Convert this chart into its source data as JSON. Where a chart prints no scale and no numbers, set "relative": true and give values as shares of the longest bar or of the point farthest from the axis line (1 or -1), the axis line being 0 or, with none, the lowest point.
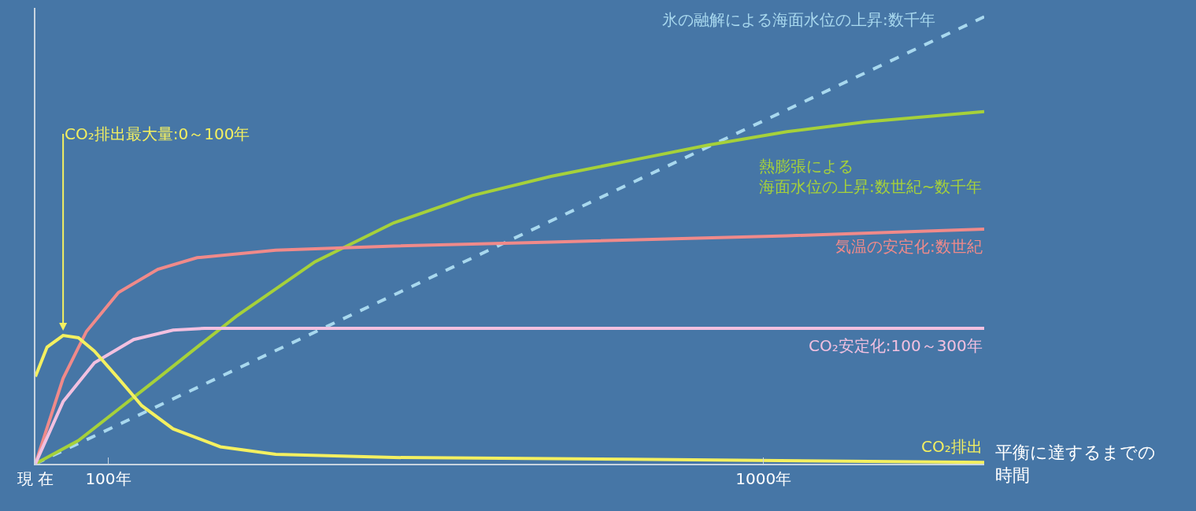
{
  "chart_data": {
    "type": "line",
    "relative": true,
    "xlabel": "平衡に達するまでの時間",
    "xlim": [
      0,
      1303
    ],
    "xticks": [
      {
        "value": 0,
        "label": "現 在"
      },
      {
        "value": 100,
        "label": "100年"
      },
      {
        "value": 1000,
        "label": "1000年"
      }
    ],
    "grid": false,
    "series": [
      {
        "name": "氷の融解による海面水位の上昇:数千年",
        "color": "#a8d8ee",
        "line_style": "dashed",
        "x": [
          0,
          1303
        ],
        "values": [
          0,
          1
        ]
      },
      {
        "name": "熱膨張による海面水位の上昇:数世紀~数千年",
        "color": "#a6d13a",
        "x": [
          0,
          59,
          114,
          168,
          222,
          276,
          384,
          492,
          600,
          708,
          816,
          924,
          1032,
          1141,
          1303
        ],
        "values": [
          0,
          0.052,
          0.122,
          0.191,
          0.261,
          0.33,
          0.452,
          0.539,
          0.6,
          0.643,
          0.678,
          0.713,
          0.743,
          0.765,
          0.788
        ]
      },
      {
        "name": "気温の安定化:数世紀",
        "color": "#f08a8a",
        "x": [
          0,
          38,
          70,
          114,
          168,
          222,
          330,
          492,
          708,
          1032,
          1303
        ],
        "values": [
          0,
          0.191,
          0.296,
          0.383,
          0.435,
          0.461,
          0.478,
          0.487,
          0.496,
          0.51,
          0.525
        ]
      },
      {
        "name": "CO₂安定化:100～300年",
        "color": "#f2c0e0",
        "x": [
          0,
          38,
          81,
          135,
          189,
          232,
          1303
        ],
        "values": [
          0,
          0.139,
          0.226,
          0.278,
          0.299,
          0.303,
          0.303
        ]
      },
      {
        "name": "CO₂排出",
        "color": "#f4f060",
        "x": [
          0,
          16,
          38,
          59,
          81,
          114,
          146,
          189,
          254,
          330,
          492,
          816,
          1303
        ],
        "values": [
          0.195,
          0.261,
          0.287,
          0.282,
          0.252,
          0.191,
          0.13,
          0.078,
          0.038,
          0.021,
          0.014,
          0.01,
          0.003
        ]
      }
    ],
    "annotations": [
      {
        "text": "CO₂排出最大量:0～100年",
        "x": 38,
        "y": 0.287
      }
    ]
  }
}
